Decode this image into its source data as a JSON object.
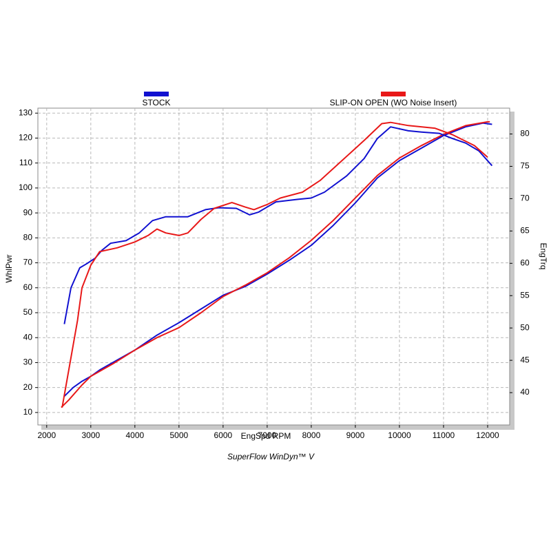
{
  "chart_data": {
    "type": "line",
    "xlabel": "EngSpd  RPM",
    "ylabel": "WhlPwr",
    "y2label": "EngTrq",
    "footer": "SuperFlow WinDyn™ V",
    "xlim": [
      1800,
      12500
    ],
    "ylim": [
      5,
      132
    ],
    "y2lim": [
      35,
      84
    ],
    "xticks": [
      2000,
      3000,
      4000,
      5000,
      6000,
      7000,
      8000,
      9000,
      10000,
      11000,
      12000
    ],
    "yticks": [
      10,
      20,
      30,
      40,
      50,
      60,
      70,
      80,
      90,
      100,
      110,
      120,
      130
    ],
    "y2ticks": [
      40,
      45,
      50,
      55,
      60,
      65,
      70,
      75,
      80
    ],
    "grid": true,
    "legend": "top",
    "series": [
      {
        "name": "STOCK",
        "color": "#1010d0",
        "axis": "y",
        "x": [
          2400,
          2600,
          2800,
          3000,
          3200,
          3500,
          4000,
          4500,
          5000,
          5500,
          6000,
          6500,
          7000,
          7500,
          8000,
          8500,
          9000,
          9500,
          10000,
          10500,
          11000,
          11500,
          11900,
          12100
        ],
        "values": [
          16.5,
          20,
          22.5,
          24.5,
          27,
          30,
          35,
          41,
          46,
          51.5,
          57,
          60.5,
          65.5,
          71,
          77,
          85,
          94,
          104,
          111,
          116,
          121,
          124.5,
          126,
          125.5
        ]
      },
      {
        "name": "SLIP-ON OPEN (WO Noise Insert)",
        "color": "#e81818",
        "axis": "y",
        "x": [
          2330,
          2500,
          2800,
          3000,
          3500,
          4000,
          4500,
          5000,
          5500,
          6000,
          6500,
          7000,
          7500,
          8000,
          8500,
          9000,
          9500,
          10000,
          10500,
          11000,
          11500,
          12000,
          12050
        ],
        "values": [
          12,
          15,
          21,
          24.5,
          29.5,
          35,
          40,
          44,
          50,
          56.5,
          61,
          66,
          72,
          79,
          87,
          96,
          105,
          112,
          117,
          121.5,
          125,
          126.5,
          126.5
        ]
      },
      {
        "name": "STOCK",
        "color": "#1010d0",
        "axis": "y2",
        "x": [
          2400,
          2550,
          2750,
          2900,
          3100,
          3250,
          3450,
          3800,
          4100,
          4400,
          4700,
          5200,
          5600,
          5900,
          6300,
          6600,
          6800,
          7200,
          7700,
          8000,
          8300,
          8800,
          9200,
          9500,
          9800,
          10200,
          10500,
          10900,
          11200,
          11500,
          11800,
          12100
        ],
        "values": [
          50.6,
          56.2,
          59.3,
          59.9,
          60.8,
          62.0,
          63.1,
          63.5,
          64.7,
          66.6,
          67.2,
          67.2,
          68.3,
          68.6,
          68.5,
          67.5,
          67.9,
          69.5,
          69.9,
          70.1,
          71.0,
          73.5,
          76.2,
          79.3,
          81.1,
          80.5,
          80.3,
          80.1,
          79.3,
          78.6,
          77.4,
          75.1
        ]
      },
      {
        "name": "SLIP-ON OPEN (WO Noise Insert)",
        "color": "#e81818",
        "axis": "y2",
        "x": [
          2350,
          2550,
          2700,
          2800,
          3000,
          3200,
          3600,
          4000,
          4300,
          4500,
          4700,
          5000,
          5200,
          5500,
          5800,
          6200,
          6500,
          6700,
          7000,
          7300,
          7800,
          8200,
          8700,
          9200,
          9600,
          9800,
          10200,
          10800,
          11200,
          11700,
          12000
        ],
        "values": [
          37.7,
          45.4,
          51.2,
          56.2,
          59.7,
          61.8,
          62.4,
          63.3,
          64.3,
          65.3,
          64.7,
          64.3,
          64.7,
          66.8,
          68.5,
          69.4,
          68.7,
          68.3,
          69.1,
          70.1,
          71.0,
          72.8,
          75.9,
          79.0,
          81.6,
          81.8,
          81.3,
          80.9,
          79.9,
          78.2,
          76.4
        ]
      }
    ]
  }
}
